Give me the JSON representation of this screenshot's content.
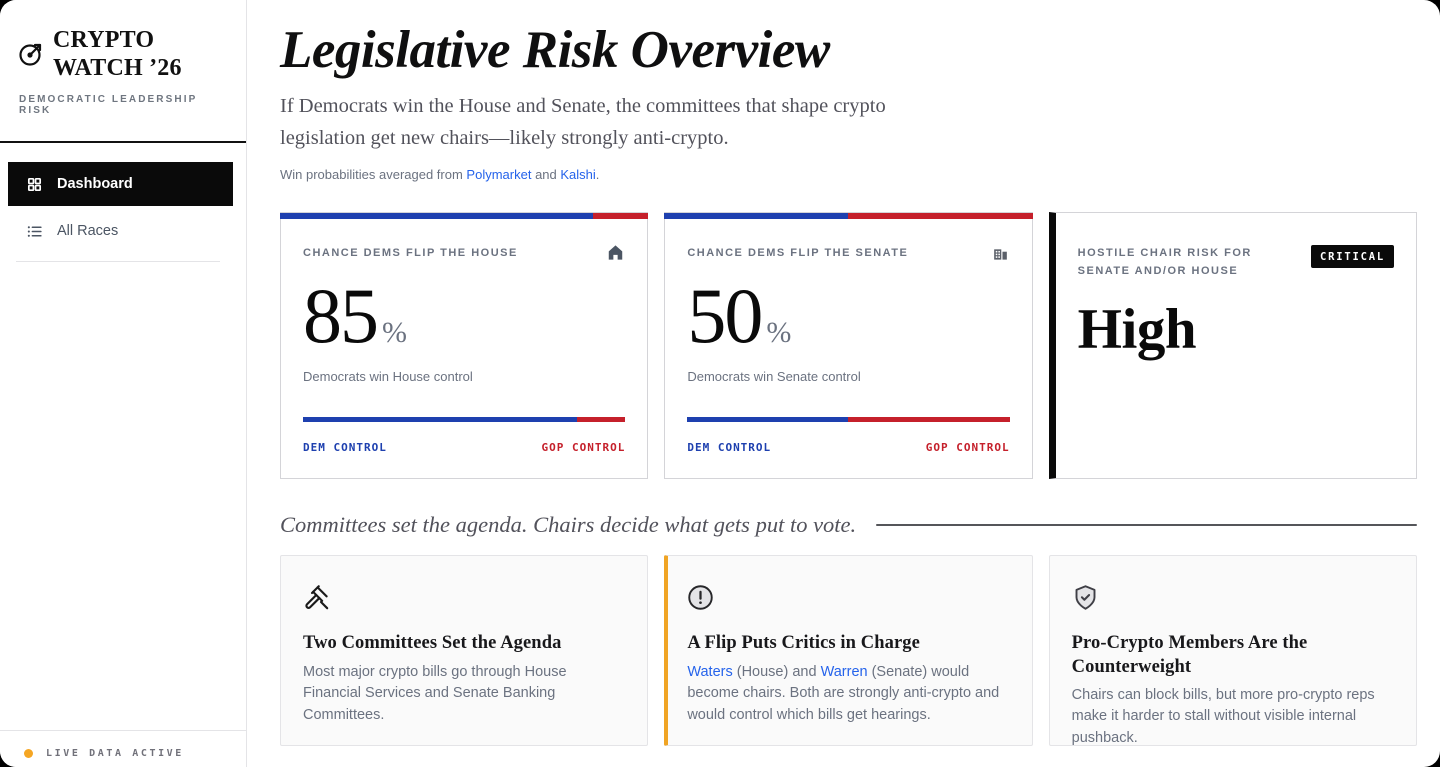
{
  "colors": {
    "dem_blue": "#1E40AF",
    "gop_red": "#C5202B",
    "accent_amber": "#F0A424",
    "link_blue": "#2563EB",
    "live_dot": "#F5A623"
  },
  "sidebar": {
    "brand_line1": "CRYPTO",
    "brand_line2": "WATCH ’26",
    "tagline": "DEMOCRATIC LEADERSHIP RISK",
    "nav": [
      {
        "label": "Dashboard",
        "icon": "grid-icon",
        "active": true
      },
      {
        "label": "All Races",
        "icon": "list-icon",
        "active": false
      }
    ],
    "footer_status": "LIVE DATA ACTIVE"
  },
  "header": {
    "title": "Legislative Risk Overview",
    "subtitle": "If Democrats win the House and Senate, the committees that shape crypto legislation get new chairs—likely strongly anti-crypto.",
    "source_prefix": "Win probabilities averaged from ",
    "link_polymarket": "Polymarket",
    "source_and": " and ",
    "link_kalshi": "Kalshi",
    "source_end": "."
  },
  "metrics": [
    {
      "label": "CHANCE DEMS FLIP THE HOUSE",
      "icon": "house-icon",
      "value": "85",
      "unit": "%",
      "caption": "Democrats win House control",
      "dem_pct": 85,
      "left_label": "DEM CONTROL",
      "right_label": "GOP CONTROL"
    },
    {
      "label": "CHANCE DEMS FLIP THE SENATE",
      "icon": "buildings-icon",
      "value": "50",
      "unit": "%",
      "caption": "Democrats win Senate control",
      "dem_pct": 50,
      "left_label": "DEM CONTROL",
      "right_label": "GOP CONTROL"
    }
  ],
  "risk_card": {
    "label": "HOSTILE CHAIR RISK FOR SENATE AND/OR HOUSE",
    "badge": "CRITICAL",
    "value": "High"
  },
  "section": {
    "heading": "Committees set the agenda. Chairs decide what gets put to vote."
  },
  "insights": [
    {
      "icon": "gavel-icon",
      "title": "Two Committees Set the Agenda",
      "body": "Most major crypto bills go through House Financial Services and Senate Banking Committees."
    },
    {
      "icon": "alert-circle-icon",
      "title": "A Flip Puts Critics in Charge",
      "link_waters": "Waters",
      "seg_house": " (House) and ",
      "link_warren": "Warren",
      "seg_rest": " (Senate) would become chairs. Both are strongly anti-crypto and would control which bills get hearings."
    },
    {
      "icon": "shield-check-icon",
      "title": "Pro-Crypto Members Are the Counterweight",
      "body": "Chairs can block bills, but more pro-crypto reps make it harder to stall without visible internal pushback."
    }
  ]
}
